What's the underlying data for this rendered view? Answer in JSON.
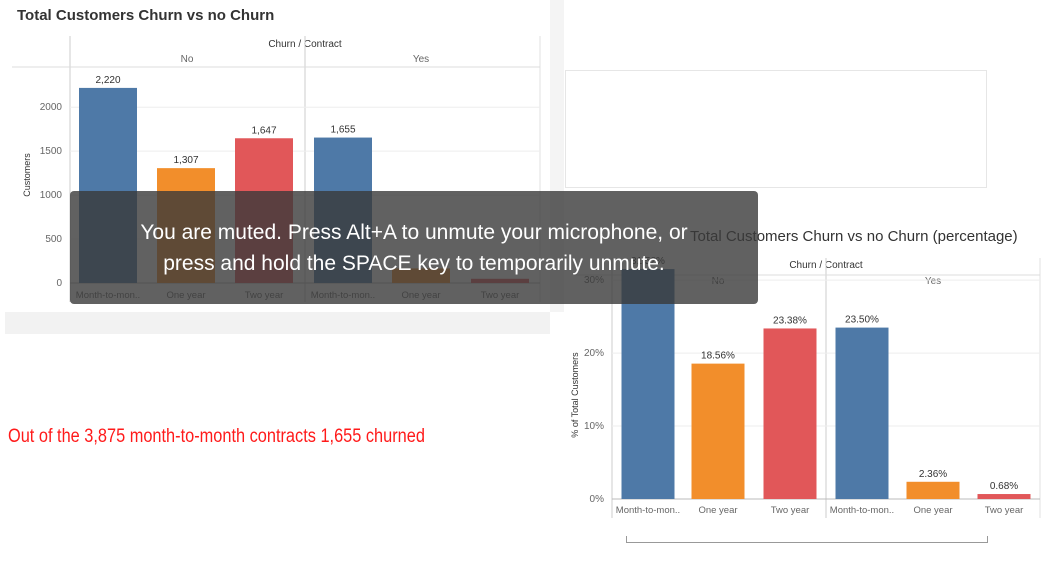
{
  "toast": {
    "line1": "You are muted. Press Alt+A to unmute your microphone, or",
    "line2": "press and hold the SPACE key to temporarily unmute."
  },
  "note": "Out of the 3,875 month-to-month contracts 1,655 churned",
  "colors": {
    "month_to_month": "#4e79a7",
    "one_year": "#f28e2b",
    "two_year": "#e15759",
    "note": "#ff1a1a"
  },
  "chart_data": [
    {
      "type": "bar",
      "title": "Total Customers Churn vs no Churn",
      "header": "Churn / Contract",
      "groups": [
        "No",
        "Yes"
      ],
      "categories": [
        "Month-to-mon..",
        "One year",
        "Two year",
        "Month-to-mon..",
        "One year",
        "Two year"
      ],
      "group_of_bar": [
        "No",
        "No",
        "No",
        "Yes",
        "Yes",
        "Yes"
      ],
      "values": [
        2220,
        1307,
        1647,
        1655,
        166,
        48
      ],
      "value_labels": [
        "2,220",
        "1,307",
        "1,647",
        "1,655",
        "",
        ""
      ],
      "ylabel": "Customers",
      "yticks": [
        0,
        500,
        1000,
        1500,
        2000
      ],
      "ytick_labels": [
        "0",
        "500",
        "1000",
        "1500",
        "2000"
      ],
      "ylim": [
        0,
        2500
      ]
    },
    {
      "type": "bar",
      "title": "Total Customers Churn vs no Churn (percentage)",
      "header": "Churn / Contract",
      "groups": [
        "No",
        "Yes"
      ],
      "categories": [
        "Month-to-mon..",
        "One year",
        "Two year",
        "Month-to-mon..",
        "One year",
        "Two year"
      ],
      "group_of_bar": [
        "No",
        "No",
        "No",
        "Yes",
        "Yes",
        "Yes"
      ],
      "values": [
        31.52,
        18.56,
        23.38,
        23.5,
        2.36,
        0.68
      ],
      "value_labels": [
        "31.52%",
        "18.56%",
        "23.38%",
        "23.50%",
        "2.36%",
        "0.68%"
      ],
      "ylabel": "% of Total Customers",
      "yticks": [
        0,
        10,
        20,
        30
      ],
      "ytick_labels": [
        "0%",
        "10%",
        "20%",
        "30%"
      ],
      "ylim": [
        0,
        34
      ]
    }
  ]
}
